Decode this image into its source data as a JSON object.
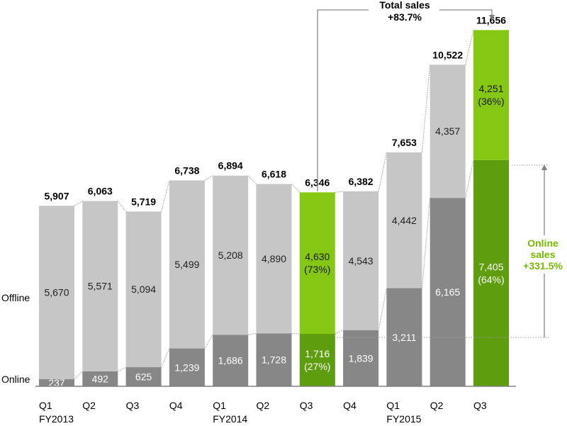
{
  "chart_data": {
    "type": "bar",
    "stacked": true,
    "categories": [
      "Q1 FY2013",
      "Q2",
      "Q3",
      "Q4",
      "Q1 FY2014",
      "Q2",
      "Q3",
      "Q4",
      "Q1 FY2015",
      "Q2",
      "Q3"
    ],
    "x_tick_labels": [
      [
        "Q1",
        "FY2013"
      ],
      [
        "Q2"
      ],
      [
        "Q3"
      ],
      [
        "Q4"
      ],
      [
        "Q1",
        "FY2014"
      ],
      [
        "Q2"
      ],
      [
        "Q3"
      ],
      [
        "Q4"
      ],
      [
        "Q1",
        "FY2015"
      ],
      [
        "Q2"
      ],
      [
        "Q3"
      ]
    ],
    "series": [
      {
        "name": "Online",
        "values": [
          237,
          492,
          625,
          1239,
          1686,
          1728,
          1716,
          1839,
          3211,
          6165,
          7405
        ]
      },
      {
        "name": "Offline",
        "values": [
          5670,
          5571,
          5094,
          5499,
          5208,
          4890,
          4630,
          4543,
          4442,
          4357,
          4251
        ]
      }
    ],
    "totals": [
      5907,
      6063,
      5719,
      6738,
      6894,
      6618,
      6346,
      6382,
      7653,
      10522,
      11656
    ],
    "value_labels": {
      "totals": [
        "5,907",
        "6,063",
        "5,719",
        "6,738",
        "6,894",
        "6,618",
        "6,346",
        "6,382",
        "7,653",
        "10,522",
        "11,656"
      ],
      "online": [
        "237",
        "492",
        "625",
        "1,239",
        "1,686",
        "1,728",
        "1,716",
        "1,839",
        "3,211",
        "6,165",
        "7,405"
      ],
      "offline": [
        "5,670",
        "5,571",
        "5,094",
        "5,499",
        "5,208",
        "4,890",
        "4,630",
        "4,543",
        "4,442",
        "4,357",
        "4,251"
      ],
      "online_pct": {
        "6": "(27%)",
        "10": "(64%)"
      },
      "offline_pct": {
        "6": "(73%)",
        "10": "(36%)"
      }
    },
    "highlighted_categories": [
      6,
      10
    ],
    "series_labels": {
      "online": "Online",
      "offline": "Offline"
    },
    "annotations": {
      "total_growth": {
        "line1": "Total sales",
        "line2": "+83.7%"
      },
      "online_growth": {
        "line1": "Online",
        "line2": "sales",
        "line3": "+331.5%"
      }
    },
    "colors": {
      "offline": "#c6c6c6",
      "online": "#878787",
      "highlight_offline": "#86c714",
      "highlight_online": "#5e9d0d",
      "annotation_green": "#76b900",
      "connector": "#9a9a9a"
    },
    "ylim": [
      0,
      12000
    ],
    "grid": false,
    "legend": "left-inline"
  }
}
